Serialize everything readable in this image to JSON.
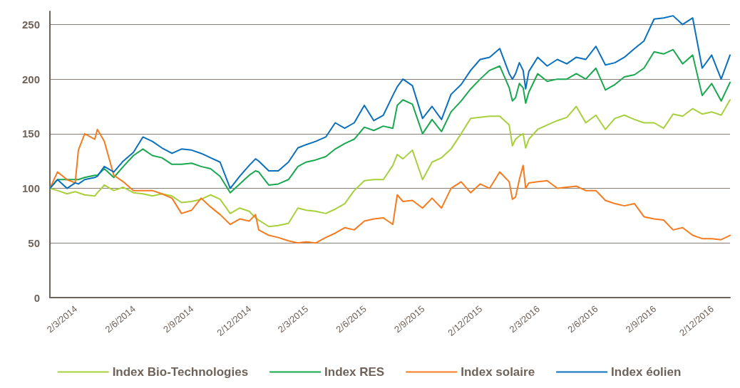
{
  "chart_data": {
    "type": "line",
    "x": [
      "2014-01-20",
      "2014-02-01",
      "2014-02-16",
      "2014-03-01",
      "2014-03-06",
      "2014-03-16",
      "2014-04-01",
      "2014-04-05",
      "2014-04-16",
      "2014-05-01",
      "2014-05-16",
      "2014-06-01",
      "2014-06-16",
      "2014-07-01",
      "2014-07-16",
      "2014-08-01",
      "2014-08-16",
      "2014-09-01",
      "2014-09-16",
      "2014-10-01",
      "2014-10-16",
      "2014-11-01",
      "2014-11-16",
      "2014-12-01",
      "2014-12-11",
      "2014-12-16",
      "2015-01-01",
      "2015-01-16",
      "2015-02-01",
      "2015-02-16",
      "2015-03-01",
      "2015-03-16",
      "2015-04-01",
      "2015-04-16",
      "2015-05-01",
      "2015-05-16",
      "2015-06-01",
      "2015-06-16",
      "2015-07-01",
      "2015-07-16",
      "2015-07-23",
      "2015-08-01",
      "2015-08-16",
      "2015-09-01",
      "2015-09-16",
      "2015-10-01",
      "2015-10-16",
      "2015-11-01",
      "2015-11-16",
      "2015-12-01",
      "2015-12-16",
      "2016-01-01",
      "2016-01-16",
      "2016-01-21",
      "2016-01-26",
      "2016-02-01",
      "2016-02-07",
      "2016-02-11",
      "2016-02-16",
      "2016-03-01",
      "2016-03-16",
      "2016-04-01",
      "2016-04-16",
      "2016-05-01",
      "2016-05-16",
      "2016-06-01",
      "2016-06-16",
      "2016-07-01",
      "2016-07-16",
      "2016-08-01",
      "2016-08-16",
      "2016-09-01",
      "2016-09-16",
      "2016-10-01",
      "2016-10-16",
      "2016-11-01",
      "2016-11-16",
      "2016-12-01",
      "2016-12-16",
      "2016-12-30"
    ],
    "series": [
      {
        "name": "Index Bio-Technologies",
        "color": "#a8cf3c",
        "values": [
          100,
          98,
          95,
          97,
          96,
          94,
          93,
          96,
          103,
          98,
          101,
          96,
          95,
          93,
          95,
          93,
          87,
          88,
          90,
          94,
          90,
          77,
          82,
          79,
          73,
          71,
          65,
          66,
          68,
          82,
          80,
          79,
          77,
          81,
          86,
          98,
          107,
          108,
          108,
          121,
          131,
          127,
          135,
          108,
          124,
          128,
          136,
          150,
          164,
          165,
          166,
          166,
          158,
          139,
          145,
          148,
          150,
          137,
          145,
          154,
          158,
          162,
          165,
          175,
          160,
          167,
          154,
          164,
          167,
          163,
          160,
          160,
          155,
          168,
          166,
          173,
          168,
          170,
          167,
          181
        ]
      },
      {
        "name": "Index RES",
        "color": "#19a84f",
        "values": [
          100,
          108,
          108,
          108,
          108,
          110,
          112,
          112,
          118,
          110,
          120,
          130,
          136,
          130,
          128,
          122,
          122,
          123,
          120,
          118,
          111,
          96,
          104,
          112,
          116,
          115,
          103,
          104,
          108,
          120,
          124,
          126,
          129,
          136,
          141,
          145,
          156,
          153,
          157,
          155,
          176,
          181,
          177,
          150,
          163,
          152,
          170,
          180,
          191,
          200,
          208,
          212,
          192,
          180,
          183,
          196,
          192,
          178,
          188,
          205,
          198,
          200,
          200,
          205,
          200,
          210,
          190,
          195,
          202,
          204,
          210,
          225,
          223,
          227,
          214,
          222,
          185,
          196,
          180,
          197
        ]
      },
      {
        "name": "Index solaire",
        "color": "#f47b20",
        "values": [
          100,
          115,
          108,
          105,
          135,
          150,
          145,
          154,
          143,
          112,
          106,
          98,
          98,
          98,
          95,
          91,
          77,
          80,
          91,
          83,
          76,
          67,
          72,
          70,
          76,
          62,
          57,
          55,
          52,
          50,
          51,
          50,
          55,
          59,
          64,
          62,
          70,
          72,
          73,
          67,
          94,
          88,
          89,
          82,
          91,
          82,
          100,
          106,
          96,
          104,
          100,
          115,
          106,
          90,
          92,
          108,
          121,
          100,
          105,
          106,
          107,
          100,
          101,
          102,
          98,
          98,
          89,
          86,
          84,
          86,
          74,
          72,
          71,
          62,
          64,
          57,
          54,
          54,
          53,
          57
        ]
      },
      {
        "name": "Index éolien",
        "color": "#0a6fbd",
        "values": [
          100,
          108,
          100,
          105,
          104,
          108,
          110,
          111,
          120,
          115,
          125,
          133,
          147,
          143,
          137,
          132,
          136,
          135,
          132,
          128,
          124,
          100,
          111,
          121,
          127,
          125,
          116,
          116,
          124,
          137,
          140,
          143,
          147,
          160,
          155,
          160,
          176,
          162,
          167,
          185,
          193,
          200,
          194,
          164,
          175,
          163,
          186,
          195,
          208,
          218,
          220,
          228,
          205,
          200,
          205,
          215,
          208,
          191,
          207,
          220,
          212,
          218,
          214,
          220,
          218,
          230,
          213,
          215,
          220,
          228,
          235,
          255,
          256,
          258,
          250,
          256,
          210,
          222,
          200,
          222
        ]
      }
    ],
    "xlim": [
      "2014-01-20",
      "2016-12-30"
    ],
    "xticks": [
      {
        "value": "2014-03-02",
        "label": "2/3/2014"
      },
      {
        "value": "2014-06-02",
        "label": "2/6/2014"
      },
      {
        "value": "2014-09-02",
        "label": "2/9/2014"
      },
      {
        "value": "2014-12-02",
        "label": "2/12/2014"
      },
      {
        "value": "2015-03-02",
        "label": "2/3/2015"
      },
      {
        "value": "2015-06-02",
        "label": "2/6/2015"
      },
      {
        "value": "2015-09-02",
        "label": "2/9/2015"
      },
      {
        "value": "2015-12-02",
        "label": "2/12/2015"
      },
      {
        "value": "2016-03-02",
        "label": "2/3/2016"
      },
      {
        "value": "2016-06-02",
        "label": "2/6/2016"
      },
      {
        "value": "2016-09-02",
        "label": "2/9/2016"
      },
      {
        "value": "2016-12-02",
        "label": "2/12/2016"
      }
    ],
    "ylim": [
      0,
      262
    ],
    "yticks": [
      0,
      50,
      100,
      150,
      200,
      250
    ],
    "grid": "y",
    "legend": "bottom",
    "marker": "none",
    "line_style": "solid"
  }
}
